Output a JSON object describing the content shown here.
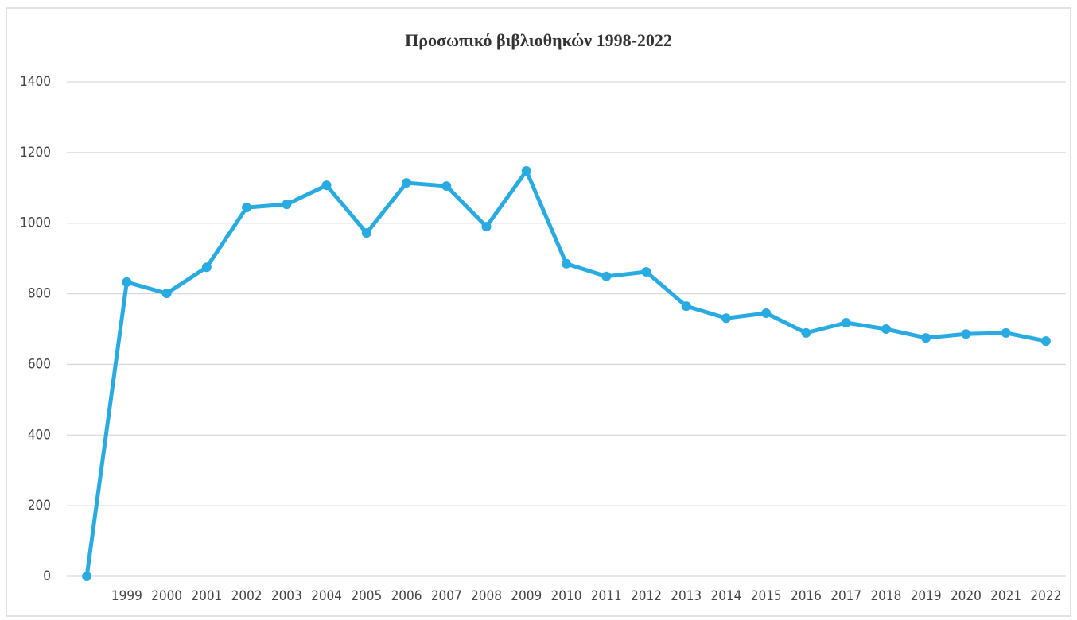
{
  "chart_data": {
    "type": "line",
    "title": "Προσωπικό βιβλιοθηκών 1998-2022",
    "categories": [
      null,
      "1999",
      "2000",
      "2001",
      "2002",
      "2003",
      "2004",
      "2005",
      "2006",
      "2007",
      "2008",
      "2009",
      "2010",
      "2011",
      "2012",
      "2013",
      "2014",
      "2015",
      "2016",
      "2017",
      "2018",
      "2019",
      "2020",
      "2021",
      "2022"
    ],
    "series": [
      {
        "name": "Προσωπικό",
        "color": "#29abe2",
        "values": [
          0,
          833,
          801,
          875,
          1044,
          1053,
          1107,
          972,
          1114,
          1105,
          990,
          1148,
          885,
          849,
          862,
          765,
          731,
          745,
          689,
          718,
          700,
          675,
          686,
          689,
          666
        ]
      }
    ],
    "ylim": [
      0,
      1400
    ],
    "yticks": [
      0,
      200,
      400,
      600,
      800,
      1000,
      1200,
      1400
    ],
    "grid": true
  }
}
